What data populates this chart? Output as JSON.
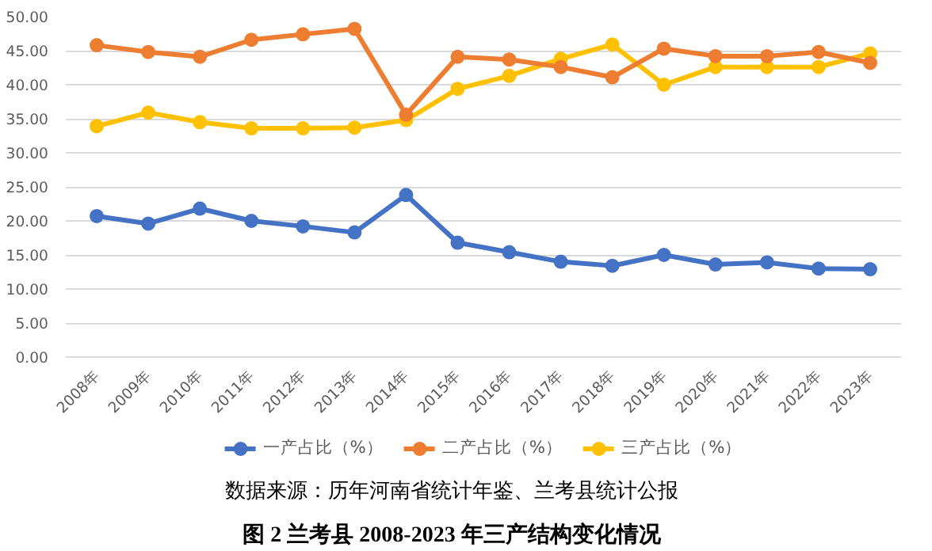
{
  "chart_data": {
    "type": "line",
    "title": "图 2 兰考县 2008-2023 年三产结构变化情况",
    "annotations": [
      "数据来源：历年河南省统计年鉴、兰考县统计公报"
    ],
    "categories": [
      "2008年",
      "2009年",
      "2010年",
      "2011年",
      "2012年",
      "2013年",
      "2014年",
      "2015年",
      "2016年",
      "2017年",
      "2018年",
      "2019年",
      "2020年",
      "2021年",
      "2022年",
      "2023年"
    ],
    "series": [
      {
        "name": "一产占比（%）",
        "color": "#4472c4",
        "values": [
          20.7,
          19.6,
          21.8,
          20.0,
          19.2,
          18.3,
          23.8,
          16.8,
          15.4,
          14.0,
          13.4,
          15.0,
          13.6,
          13.9,
          13.0,
          12.9
        ]
      },
      {
        "name": "二产占比（%）",
        "color": "#ed7d31",
        "values": [
          45.8,
          44.8,
          44.1,
          46.6,
          47.4,
          48.2,
          35.6,
          44.1,
          43.7,
          42.6,
          41.1,
          45.3,
          44.2,
          44.2,
          44.8,
          43.2
        ]
      },
      {
        "name": "三产占比（%）",
        "color": "#ffc000",
        "values": [
          33.9,
          35.9,
          34.5,
          33.6,
          33.6,
          33.7,
          34.8,
          39.4,
          41.3,
          43.8,
          45.9,
          40.0,
          42.6,
          42.6,
          42.6,
          44.6
        ]
      }
    ],
    "ylim": [
      0,
      50
    ],
    "yticks": [
      {
        "value": 0,
        "label": "0.00"
      },
      {
        "value": 5,
        "label": "5.00"
      },
      {
        "value": 10,
        "label": "10.00"
      },
      {
        "value": 15,
        "label": "15.00"
      },
      {
        "value": 20,
        "label": "20.00"
      },
      {
        "value": 25,
        "label": "25.00"
      },
      {
        "value": 30,
        "label": "30.00"
      },
      {
        "value": 35,
        "label": "35.00"
      },
      {
        "value": 40,
        "label": "40.00"
      },
      {
        "value": 45,
        "label": "45.00"
      },
      {
        "value": 50,
        "label": "50.00"
      }
    ],
    "grid": "y",
    "legend": "bottom",
    "marker": "circle",
    "line_style": "solid"
  }
}
